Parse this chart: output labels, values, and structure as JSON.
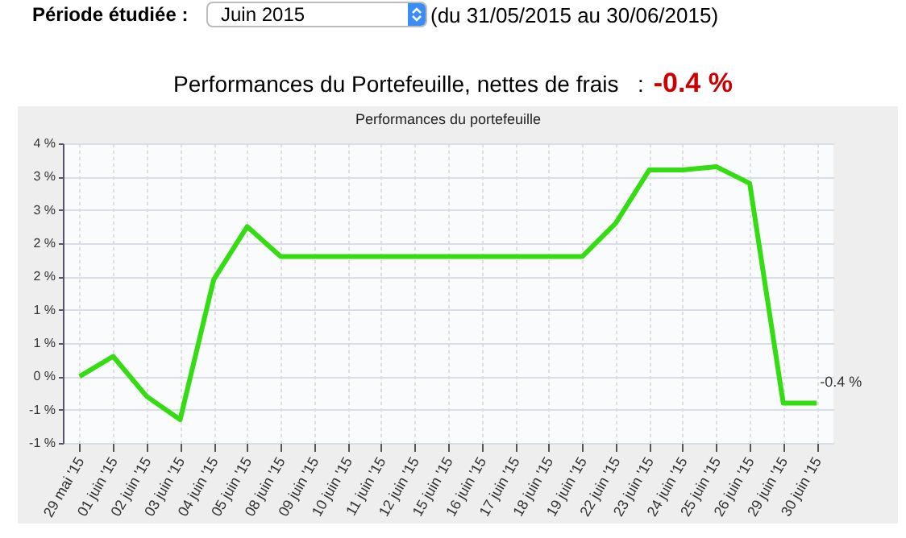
{
  "chart_data": {
    "type": "line",
    "title": "Performances du portefeuille",
    "categories": [
      "29 mai '15",
      "01 juin '15",
      "02 juin '15",
      "03 juin '15",
      "04 juin '15",
      "05 juin '15",
      "08 juin '15",
      "09 juin '15",
      "10 juin '15",
      "11 juin '15",
      "12 juin '15",
      "15 juin '15",
      "16 juin '15",
      "17 juin '15",
      "18 juin '15",
      "19 juin '15",
      "22 juin '15",
      "23 juin '15",
      "24 juin '15",
      "25 juin '15",
      "26 juin '15",
      "29 juin '15",
      "30 juin '15"
    ],
    "series": [
      {
        "color": "#33dd11",
        "values": [
          0,
          0.3,
          -0.3,
          -0.65,
          1.45,
          2.25,
          1.8,
          1.8,
          1.8,
          1.8,
          1.8,
          1.8,
          1.8,
          1.8,
          1.8,
          1.8,
          2.3,
          3.1,
          3.1,
          3.15,
          2.9,
          -0.4,
          -0.4
        ]
      }
    ],
    "ylim": [
      -1,
      3.5
    ],
    "yticks": [
      {
        "value": -1,
        "label": "-1 %"
      },
      {
        "value": -0.5,
        "label": "-1 %"
      },
      {
        "value": 0,
        "label": "0 %"
      },
      {
        "value": 0.5,
        "label": "1 %"
      },
      {
        "value": 1,
        "label": "1 %"
      },
      {
        "value": 1.5,
        "label": "2 %"
      },
      {
        "value": 2,
        "label": "2 %"
      },
      {
        "value": 2.5,
        "label": "3 %"
      },
      {
        "value": 3,
        "label": "3 %"
      },
      {
        "value": 3.5,
        "label": "4 %"
      }
    ],
    "grid": true,
    "marker": "none",
    "line_style": "solid",
    "annotations": [
      "Période étudiée :",
      "Juin 2015",
      "(du 31/05/2015 au 30/06/2015)",
      "Performances du Portefeuille, nettes de frais   :",
      "-0.4 %",
      {
        "text": "-0.4 %",
        "x": "30 juin '15",
        "y": -0.4
      }
    ]
  }
}
